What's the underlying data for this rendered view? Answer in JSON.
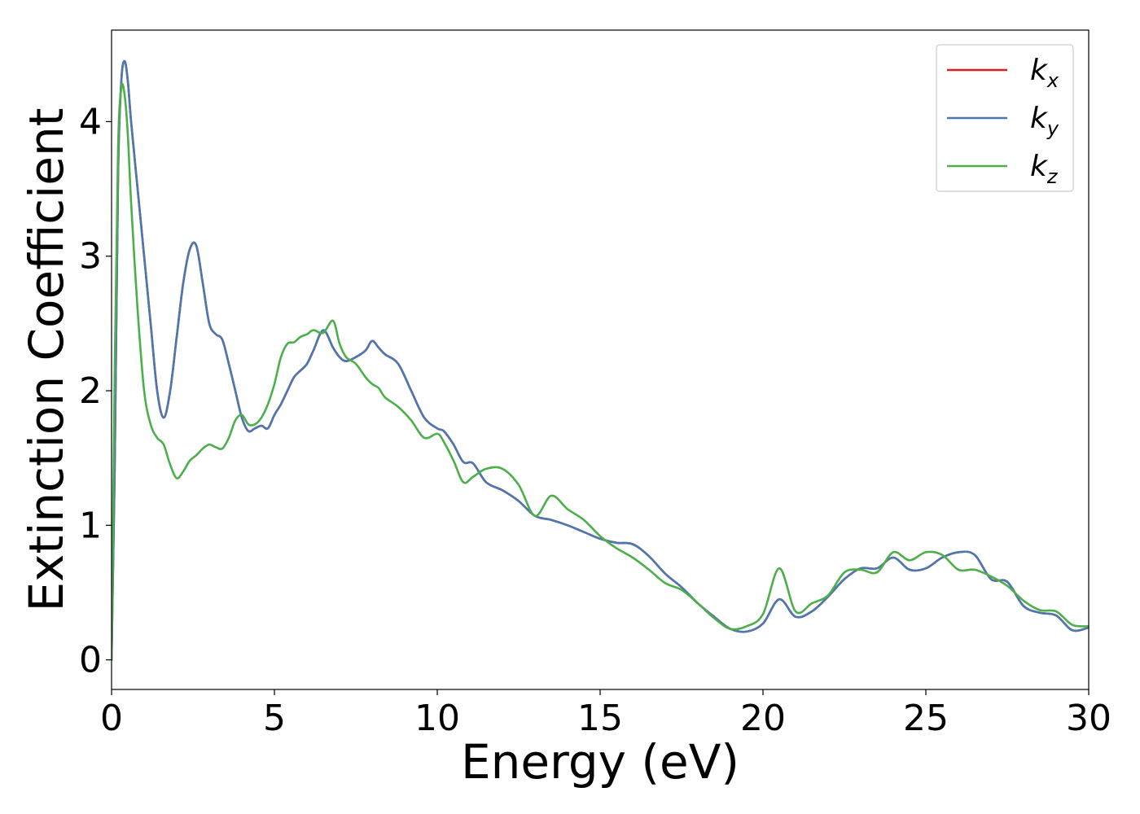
{
  "chart_data": {
    "type": "line",
    "title": "",
    "xlabel": "Energy (eV)",
    "ylabel": "Extinction Coefficient",
    "xlim": [
      0,
      30
    ],
    "ylim": [
      -0.22,
      4.68
    ],
    "xticks": [
      0,
      5,
      10,
      15,
      20,
      25,
      30
    ],
    "yticks": [
      0,
      1,
      2,
      3,
      4
    ],
    "grid": false,
    "legend_position": "top-right",
    "series": [
      {
        "name": "k",
        "subscript": "x",
        "color": "#e41a1c",
        "x": [
          0,
          0.1,
          0.2,
          0.3,
          0.4,
          0.5,
          0.6,
          0.8,
          1.0,
          1.2,
          1.4,
          1.6,
          1.8,
          2.0,
          2.2,
          2.4,
          2.6,
          2.8,
          3.0,
          3.2,
          3.4,
          3.6,
          3.8,
          4.0,
          4.2,
          4.4,
          4.6,
          4.8,
          5.0,
          5.2,
          5.4,
          5.6,
          5.8,
          6.0,
          6.2,
          6.5,
          6.8,
          7.0,
          7.2,
          7.5,
          7.8,
          8.0,
          8.2,
          8.4,
          8.8,
          9.2,
          9.6,
          10.0,
          10.2,
          10.5,
          10.8,
          11.1,
          11.5,
          12.0,
          12.5,
          13.0,
          13.5,
          14.0,
          14.5,
          15.0,
          15.5,
          16.0,
          16.5,
          17.0,
          17.5,
          18.0,
          18.5,
          19.0,
          19.5,
          20.0,
          20.5,
          21.0,
          21.5,
          22.0,
          22.5,
          23.0,
          23.5,
          24.0,
          24.5,
          25.0,
          25.5,
          26.0,
          26.5,
          27.0,
          27.5,
          28.0,
          28.5,
          29.0,
          29.5,
          30.0
        ],
        "values": [
          0,
          1.5,
          3.6,
          4.3,
          4.45,
          4.3,
          4.0,
          3.5,
          3.0,
          2.5,
          2.0,
          1.8,
          2.0,
          2.4,
          2.8,
          3.05,
          3.08,
          2.8,
          2.5,
          2.42,
          2.38,
          2.2,
          2.0,
          1.8,
          1.7,
          1.72,
          1.74,
          1.72,
          1.82,
          1.9,
          2.0,
          2.1,
          2.15,
          2.2,
          2.3,
          2.45,
          2.32,
          2.25,
          2.22,
          2.25,
          2.3,
          2.37,
          2.32,
          2.27,
          2.2,
          2.0,
          1.8,
          1.72,
          1.7,
          1.6,
          1.47,
          1.46,
          1.32,
          1.26,
          1.18,
          1.07,
          1.04,
          1.0,
          0.95,
          0.9,
          0.87,
          0.86,
          0.77,
          0.64,
          0.54,
          0.42,
          0.32,
          0.23,
          0.21,
          0.27,
          0.45,
          0.32,
          0.36,
          0.47,
          0.6,
          0.68,
          0.68,
          0.76,
          0.67,
          0.68,
          0.76,
          0.8,
          0.78,
          0.6,
          0.58,
          0.4,
          0.35,
          0.33,
          0.22,
          0.24
        ]
      },
      {
        "name": "k",
        "subscript": "y",
        "color": "#4a78b0",
        "x": [
          0,
          0.1,
          0.2,
          0.3,
          0.4,
          0.5,
          0.6,
          0.8,
          1.0,
          1.2,
          1.4,
          1.6,
          1.8,
          2.0,
          2.2,
          2.4,
          2.6,
          2.8,
          3.0,
          3.2,
          3.4,
          3.6,
          3.8,
          4.0,
          4.2,
          4.4,
          4.6,
          4.8,
          5.0,
          5.2,
          5.4,
          5.6,
          5.8,
          6.0,
          6.2,
          6.5,
          6.8,
          7.0,
          7.2,
          7.5,
          7.8,
          8.0,
          8.2,
          8.4,
          8.8,
          9.2,
          9.6,
          10.0,
          10.2,
          10.5,
          10.8,
          11.1,
          11.5,
          12.0,
          12.5,
          13.0,
          13.5,
          14.0,
          14.5,
          15.0,
          15.5,
          16.0,
          16.5,
          17.0,
          17.5,
          18.0,
          18.5,
          19.0,
          19.5,
          20.0,
          20.5,
          21.0,
          21.5,
          22.0,
          22.5,
          23.0,
          23.5,
          24.0,
          24.5,
          25.0,
          25.5,
          26.0,
          26.5,
          27.0,
          27.5,
          28.0,
          28.5,
          29.0,
          29.5,
          30.0
        ],
        "values": [
          0,
          1.5,
          3.6,
          4.3,
          4.45,
          4.3,
          4.0,
          3.5,
          3.0,
          2.5,
          2.0,
          1.8,
          2.0,
          2.4,
          2.8,
          3.05,
          3.08,
          2.8,
          2.5,
          2.42,
          2.38,
          2.2,
          2.0,
          1.8,
          1.7,
          1.72,
          1.74,
          1.72,
          1.82,
          1.9,
          2.0,
          2.1,
          2.15,
          2.2,
          2.3,
          2.45,
          2.32,
          2.25,
          2.22,
          2.25,
          2.3,
          2.37,
          2.32,
          2.27,
          2.2,
          2.0,
          1.8,
          1.72,
          1.7,
          1.6,
          1.47,
          1.46,
          1.32,
          1.26,
          1.18,
          1.07,
          1.04,
          1.0,
          0.95,
          0.9,
          0.87,
          0.86,
          0.77,
          0.64,
          0.54,
          0.42,
          0.32,
          0.23,
          0.21,
          0.27,
          0.45,
          0.32,
          0.36,
          0.47,
          0.6,
          0.68,
          0.68,
          0.76,
          0.67,
          0.68,
          0.76,
          0.8,
          0.78,
          0.6,
          0.58,
          0.4,
          0.35,
          0.33,
          0.22,
          0.24
        ]
      },
      {
        "name": "k",
        "subscript": "z",
        "color": "#4daf4a",
        "x": [
          0,
          0.1,
          0.2,
          0.3,
          0.4,
          0.5,
          0.6,
          0.8,
          1.0,
          1.2,
          1.4,
          1.6,
          1.8,
          2.0,
          2.2,
          2.4,
          2.6,
          2.8,
          3.0,
          3.2,
          3.4,
          3.6,
          3.8,
          4.0,
          4.2,
          4.4,
          4.6,
          4.8,
          5.0,
          5.2,
          5.4,
          5.6,
          5.8,
          6.0,
          6.2,
          6.5,
          6.8,
          7.0,
          7.2,
          7.5,
          7.8,
          8.0,
          8.2,
          8.4,
          8.8,
          9.2,
          9.6,
          10.0,
          10.2,
          10.5,
          10.8,
          11.1,
          11.5,
          12.0,
          12.5,
          13.0,
          13.5,
          14.0,
          14.5,
          15.0,
          15.5,
          16.0,
          16.5,
          17.0,
          17.5,
          18.0,
          18.5,
          19.0,
          19.5,
          20.0,
          20.5,
          21.0,
          21.5,
          22.0,
          22.5,
          23.0,
          23.5,
          24.0,
          24.5,
          25.0,
          25.5,
          26.0,
          26.5,
          27.0,
          27.5,
          28.0,
          28.5,
          29.0,
          29.5,
          30.0
        ],
        "values": [
          0,
          2.2,
          3.8,
          4.25,
          4.2,
          3.9,
          3.4,
          2.6,
          2.0,
          1.75,
          1.65,
          1.6,
          1.45,
          1.35,
          1.4,
          1.48,
          1.52,
          1.57,
          1.6,
          1.58,
          1.57,
          1.65,
          1.78,
          1.82,
          1.75,
          1.75,
          1.8,
          1.9,
          2.05,
          2.25,
          2.35,
          2.36,
          2.4,
          2.42,
          2.45,
          2.43,
          2.52,
          2.35,
          2.25,
          2.2,
          2.1,
          2.05,
          2.02,
          1.95,
          1.88,
          1.78,
          1.65,
          1.68,
          1.62,
          1.48,
          1.32,
          1.36,
          1.42,
          1.42,
          1.3,
          1.07,
          1.22,
          1.12,
          1.04,
          0.92,
          0.83,
          0.76,
          0.67,
          0.57,
          0.52,
          0.42,
          0.31,
          0.23,
          0.25,
          0.34,
          0.68,
          0.36,
          0.42,
          0.48,
          0.65,
          0.67,
          0.65,
          0.8,
          0.74,
          0.8,
          0.78,
          0.67,
          0.67,
          0.62,
          0.55,
          0.44,
          0.37,
          0.36,
          0.26,
          0.25
        ]
      }
    ]
  }
}
